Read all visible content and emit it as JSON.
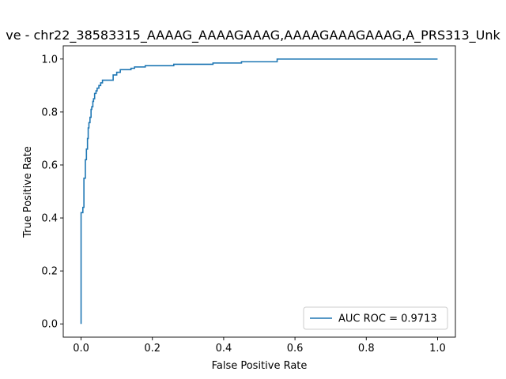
{
  "chart_data": {
    "type": "line",
    "title": "ve - chr22_38583315_AAAAG_AAAAGAAAG,AAAAGAAAGAAAG,A_PRS313_Unk",
    "xlabel": "False Positive Rate",
    "ylabel": "True Positive Rate",
    "xlim": [
      -0.05,
      1.05
    ],
    "ylim": [
      -0.05,
      1.05
    ],
    "xticks": [
      "0.0",
      "0.2",
      "0.4",
      "0.6",
      "0.8",
      "1.0"
    ],
    "yticks": [
      "0.0",
      "0.2",
      "0.4",
      "0.6",
      "0.8",
      "1.0"
    ],
    "grid": false,
    "legend_position": "lower-right",
    "series": [
      {
        "name": "AUC ROC = 0.9713",
        "color": "#1f77b4",
        "step": true,
        "x": [
          0.0,
          0.0,
          0.005,
          0.005,
          0.008,
          0.008,
          0.012,
          0.012,
          0.015,
          0.015,
          0.018,
          0.018,
          0.02,
          0.02,
          0.022,
          0.022,
          0.025,
          0.025,
          0.028,
          0.028,
          0.03,
          0.03,
          0.033,
          0.033,
          0.035,
          0.035,
          0.038,
          0.038,
          0.042,
          0.042,
          0.045,
          0.045,
          0.05,
          0.05,
          0.055,
          0.055,
          0.06,
          0.06,
          0.065,
          0.065,
          0.09,
          0.09,
          0.1,
          0.1,
          0.11,
          0.11,
          0.14,
          0.14,
          0.15,
          0.15,
          0.18,
          0.18,
          0.26,
          0.26,
          0.37,
          0.37,
          0.45,
          0.45,
          0.55,
          0.55,
          1.0
        ],
        "y": [
          0.0,
          0.42,
          0.42,
          0.44,
          0.44,
          0.55,
          0.55,
          0.62,
          0.62,
          0.66,
          0.66,
          0.7,
          0.7,
          0.74,
          0.74,
          0.76,
          0.76,
          0.78,
          0.78,
          0.81,
          0.81,
          0.82,
          0.82,
          0.84,
          0.84,
          0.85,
          0.85,
          0.87,
          0.87,
          0.88,
          0.88,
          0.89,
          0.89,
          0.9,
          0.9,
          0.91,
          0.91,
          0.92,
          0.92,
          0.92,
          0.92,
          0.94,
          0.94,
          0.95,
          0.95,
          0.96,
          0.96,
          0.965,
          0.965,
          0.97,
          0.97,
          0.975,
          0.975,
          0.98,
          0.98,
          0.985,
          0.985,
          0.99,
          0.99,
          1.0,
          1.0
        ]
      }
    ]
  }
}
